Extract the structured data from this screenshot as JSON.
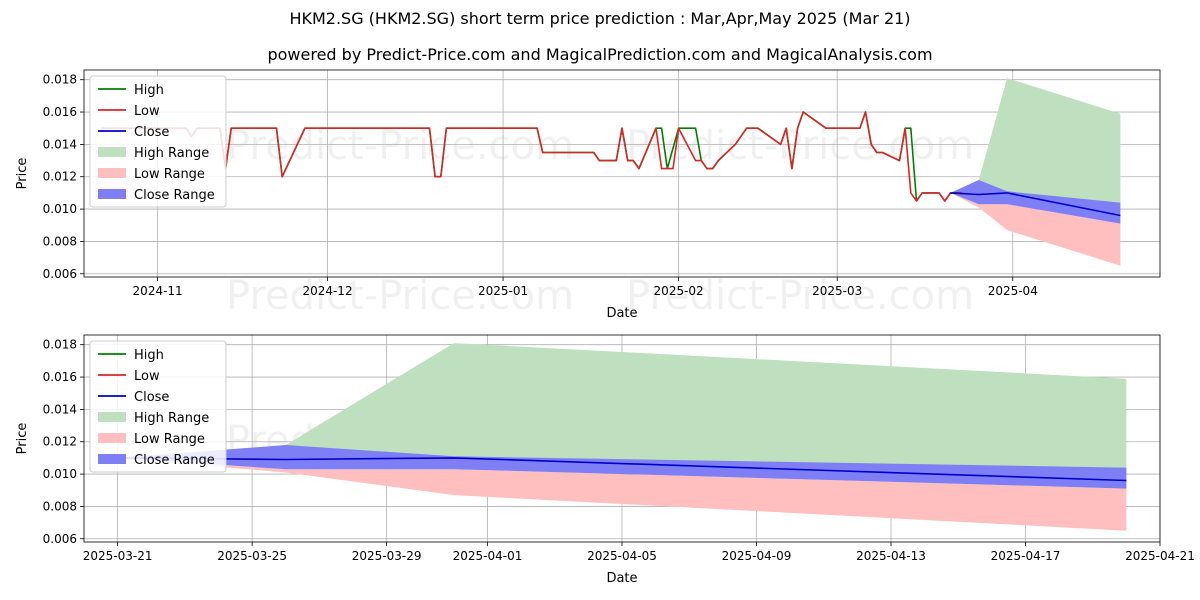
{
  "title": "HKM2.SG (HKM2.SG) short term price prediction : Mar,Apr,May 2025 (Mar 21)",
  "subtitle": "powered by Predict-Price.com and MagicalPrediction.com and MagicalAnalysis.com",
  "watermark": "Predict-Price.com",
  "colors": {
    "high": "#008000",
    "low": "#d62728",
    "close": "#0000cd",
    "high_range": "#bfe0bf",
    "low_range": "#ffbfbf",
    "close_range": "#7f7ff5"
  },
  "chart_data": [
    {
      "type": "line",
      "xlabel": "Date",
      "ylabel": "Price",
      "x_ticks": [
        "2024-11",
        "2024-12",
        "2025-01",
        "2025-02",
        "2025-03",
        "2025-04"
      ],
      "y_ticks": [
        "0.006",
        "0.008",
        "0.010",
        "0.012",
        "0.014",
        "0.016",
        "0.018"
      ],
      "ylim": [
        0.0058,
        0.0186
      ],
      "xlim": [
        "2024-10-19",
        "2025-04-27"
      ],
      "legend": [
        "High",
        "Low",
        "Close",
        "High Range",
        "Low Range",
        "Close Range"
      ],
      "legend_position": "upper-left",
      "grid": true,
      "series": [
        {
          "name": "High",
          "points": [
            [
              "2024-10-22",
              0.015
            ],
            [
              "2024-11-06",
              0.015
            ],
            [
              "2024-11-07",
              0.0145
            ],
            [
              "2024-11-08",
              0.015
            ],
            [
              "2024-11-12",
              0.015
            ],
            [
              "2024-11-13",
              0.0125
            ],
            [
              "2024-11-14",
              0.015
            ],
            [
              "2024-11-22",
              0.015
            ],
            [
              "2024-11-23",
              0.012
            ],
            [
              "2024-11-27",
              0.015
            ],
            [
              "2024-12-19",
              0.015
            ],
            [
              "2024-12-20",
              0.012
            ],
            [
              "2024-12-21",
              0.012
            ],
            [
              "2024-12-22",
              0.015
            ],
            [
              "2025-01-07",
              0.015
            ],
            [
              "2025-01-08",
              0.0135
            ],
            [
              "2025-01-17",
              0.0135
            ],
            [
              "2025-01-18",
              0.013
            ],
            [
              "2025-01-21",
              0.013
            ],
            [
              "2025-01-22",
              0.015
            ],
            [
              "2025-01-23",
              0.013
            ],
            [
              "2025-01-24",
              0.013
            ],
            [
              "2025-01-25",
              0.0125
            ],
            [
              "2025-01-28",
              0.015
            ],
            [
              "2025-01-29",
              0.015
            ],
            [
              "2025-01-30",
              0.0125
            ],
            [
              "2025-02-01",
              0.015
            ],
            [
              "2025-02-04",
              0.015
            ],
            [
              "2025-02-05",
              0.013
            ],
            [
              "2025-02-06",
              0.0125
            ],
            [
              "2025-02-07",
              0.0125
            ],
            [
              "2025-02-08",
              0.013
            ],
            [
              "2025-02-11",
              0.014
            ],
            [
              "2025-02-13",
              0.015
            ],
            [
              "2025-02-15",
              0.015
            ],
            [
              "2025-02-19",
              0.014
            ],
            [
              "2025-02-20",
              0.015
            ],
            [
              "2025-02-21",
              0.0125
            ],
            [
              "2025-02-22",
              0.015
            ],
            [
              "2025-02-23",
              0.016
            ],
            [
              "2025-02-27",
              0.015
            ],
            [
              "2025-03-05",
              0.015
            ],
            [
              "2025-03-06",
              0.016
            ],
            [
              "2025-03-07",
              0.014
            ],
            [
              "2025-03-08",
              0.0135
            ],
            [
              "2025-03-09",
              0.0135
            ],
            [
              "2025-03-12",
              0.013
            ],
            [
              "2025-03-13",
              0.015
            ],
            [
              "2025-03-14",
              0.015
            ],
            [
              "2025-03-15",
              0.0105
            ],
            [
              "2025-03-16",
              0.011
            ],
            [
              "2025-03-19",
              0.011
            ],
            [
              "2025-03-20",
              0.0105
            ],
            [
              "2025-03-21",
              0.011
            ],
            [
              "2025-03-23",
              0.011
            ]
          ]
        },
        {
          "name": "Low",
          "points": [
            [
              "2024-10-22",
              0.015
            ],
            [
              "2024-11-06",
              0.015
            ],
            [
              "2024-11-07",
              0.0145
            ],
            [
              "2024-11-08",
              0.015
            ],
            [
              "2024-11-12",
              0.015
            ],
            [
              "2024-11-13",
              0.0125
            ],
            [
              "2024-11-14",
              0.015
            ],
            [
              "2024-11-22",
              0.015
            ],
            [
              "2024-11-23",
              0.012
            ],
            [
              "2024-11-27",
              0.015
            ],
            [
              "2024-12-19",
              0.015
            ],
            [
              "2024-12-20",
              0.012
            ],
            [
              "2024-12-21",
              0.012
            ],
            [
              "2024-12-22",
              0.015
            ],
            [
              "2025-01-07",
              0.015
            ],
            [
              "2025-01-08",
              0.0135
            ],
            [
              "2025-01-17",
              0.0135
            ],
            [
              "2025-01-18",
              0.013
            ],
            [
              "2025-01-21",
              0.013
            ],
            [
              "2025-01-22",
              0.015
            ],
            [
              "2025-01-23",
              0.013
            ],
            [
              "2025-01-24",
              0.013
            ],
            [
              "2025-01-25",
              0.0125
            ],
            [
              "2025-01-28",
              0.015
            ],
            [
              "2025-01-29",
              0.0125
            ],
            [
              "2025-01-31",
              0.0125
            ],
            [
              "2025-02-01",
              0.015
            ],
            [
              "2025-02-04",
              0.013
            ],
            [
              "2025-02-05",
              0.013
            ],
            [
              "2025-02-06",
              0.0125
            ],
            [
              "2025-02-07",
              0.0125
            ],
            [
              "2025-02-08",
              0.013
            ],
            [
              "2025-02-11",
              0.014
            ],
            [
              "2025-02-13",
              0.015
            ],
            [
              "2025-02-15",
              0.015
            ],
            [
              "2025-02-19",
              0.014
            ],
            [
              "2025-02-20",
              0.015
            ],
            [
              "2025-02-21",
              0.0125
            ],
            [
              "2025-02-22",
              0.015
            ],
            [
              "2025-02-23",
              0.016
            ],
            [
              "2025-02-27",
              0.015
            ],
            [
              "2025-03-05",
              0.015
            ],
            [
              "2025-03-06",
              0.016
            ],
            [
              "2025-03-07",
              0.014
            ],
            [
              "2025-03-08",
              0.0135
            ],
            [
              "2025-03-09",
              0.0135
            ],
            [
              "2025-03-12",
              0.013
            ],
            [
              "2025-03-13",
              0.015
            ],
            [
              "2025-03-14",
              0.011
            ],
            [
              "2025-03-15",
              0.0105
            ],
            [
              "2025-03-16",
              0.011
            ],
            [
              "2025-03-19",
              0.011
            ],
            [
              "2025-03-20",
              0.0105
            ],
            [
              "2025-03-21",
              0.011
            ],
            [
              "2025-03-23",
              0.011
            ]
          ]
        },
        {
          "name": "Close",
          "points": [
            [
              "2025-03-21",
              0.011
            ],
            [
              "2025-03-26",
              0.0109
            ],
            [
              "2025-03-31",
              0.011
            ],
            [
              "2025-04-20",
              0.0096
            ]
          ]
        },
        {
          "name": "High Range",
          "upper": [
            [
              "2025-03-21",
              0.011
            ],
            [
              "2025-03-26",
              0.0118
            ],
            [
              "2025-03-31",
              0.0181
            ],
            [
              "2025-04-20",
              0.0159
            ]
          ],
          "lower": [
            [
              "2025-03-21",
              0.011
            ],
            [
              "2025-03-26",
              0.0109
            ],
            [
              "2025-03-31",
              0.011
            ],
            [
              "2025-04-20",
              0.0104
            ]
          ]
        },
        {
          "name": "Low Range",
          "upper": [
            [
              "2025-03-21",
              0.011
            ],
            [
              "2025-03-26",
              0.0103
            ],
            [
              "2025-03-31",
              0.0103
            ],
            [
              "2025-04-20",
              0.0091
            ]
          ],
          "lower": [
            [
              "2025-03-21",
              0.011
            ],
            [
              "2025-03-26",
              0.0101
            ],
            [
              "2025-03-31",
              0.0087
            ],
            [
              "2025-04-20",
              0.0065
            ]
          ]
        },
        {
          "name": "Close Range",
          "upper": [
            [
              "2025-03-21",
              0.011
            ],
            [
              "2025-03-26",
              0.0118
            ],
            [
              "2025-03-31",
              0.0111
            ],
            [
              "2025-04-20",
              0.0104
            ]
          ],
          "lower": [
            [
              "2025-03-21",
              0.011
            ],
            [
              "2025-03-26",
              0.0103
            ],
            [
              "2025-03-31",
              0.0103
            ],
            [
              "2025-04-20",
              0.0091
            ]
          ]
        }
      ]
    },
    {
      "type": "line",
      "xlabel": "Date",
      "ylabel": "Price",
      "x_ticks": [
        "2025-03-21",
        "2025-03-25",
        "2025-03-29",
        "2025-04-01",
        "2025-04-05",
        "2025-04-09",
        "2025-04-13",
        "2025-04-17",
        "2025-04-21"
      ],
      "y_ticks": [
        "0.006",
        "0.008",
        "0.010",
        "0.012",
        "0.014",
        "0.016",
        "0.018"
      ],
      "ylim": [
        0.0058,
        0.0186
      ],
      "xlim": [
        "2025-03-20",
        "2025-04-21"
      ],
      "legend": [
        "High",
        "Low",
        "Close",
        "High Range",
        "Low Range",
        "Close Range"
      ],
      "legend_position": "upper-left",
      "grid": true,
      "series": [
        {
          "name": "Close",
          "points": [
            [
              "2025-03-21",
              0.011
            ],
            [
              "2025-03-26",
              0.0109
            ],
            [
              "2025-03-31",
              0.011
            ],
            [
              "2025-04-20",
              0.0096
            ]
          ]
        },
        {
          "name": "High Range",
          "upper": [
            [
              "2025-03-21",
              0.011
            ],
            [
              "2025-03-26",
              0.0118
            ],
            [
              "2025-03-31",
              0.0181
            ],
            [
              "2025-04-20",
              0.0159
            ]
          ],
          "lower": [
            [
              "2025-03-21",
              0.011
            ],
            [
              "2025-03-26",
              0.0109
            ],
            [
              "2025-03-31",
              0.011
            ],
            [
              "2025-04-20",
              0.0104
            ]
          ]
        },
        {
          "name": "Low Range",
          "upper": [
            [
              "2025-03-21",
              0.011
            ],
            [
              "2025-03-26",
              0.0103
            ],
            [
              "2025-03-31",
              0.0103
            ],
            [
              "2025-04-20",
              0.0091
            ]
          ],
          "lower": [
            [
              "2025-03-21",
              0.011
            ],
            [
              "2025-03-26",
              0.0101
            ],
            [
              "2025-03-31",
              0.0087
            ],
            [
              "2025-04-20",
              0.0065
            ]
          ]
        },
        {
          "name": "Close Range",
          "upper": [
            [
              "2025-03-21",
              0.011
            ],
            [
              "2025-03-26",
              0.0118
            ],
            [
              "2025-03-31",
              0.0111
            ],
            [
              "2025-04-20",
              0.0104
            ]
          ],
          "lower": [
            [
              "2025-03-21",
              0.011
            ],
            [
              "2025-03-26",
              0.0103
            ],
            [
              "2025-03-31",
              0.0103
            ],
            [
              "2025-04-20",
              0.0091
            ]
          ]
        }
      ]
    }
  ]
}
